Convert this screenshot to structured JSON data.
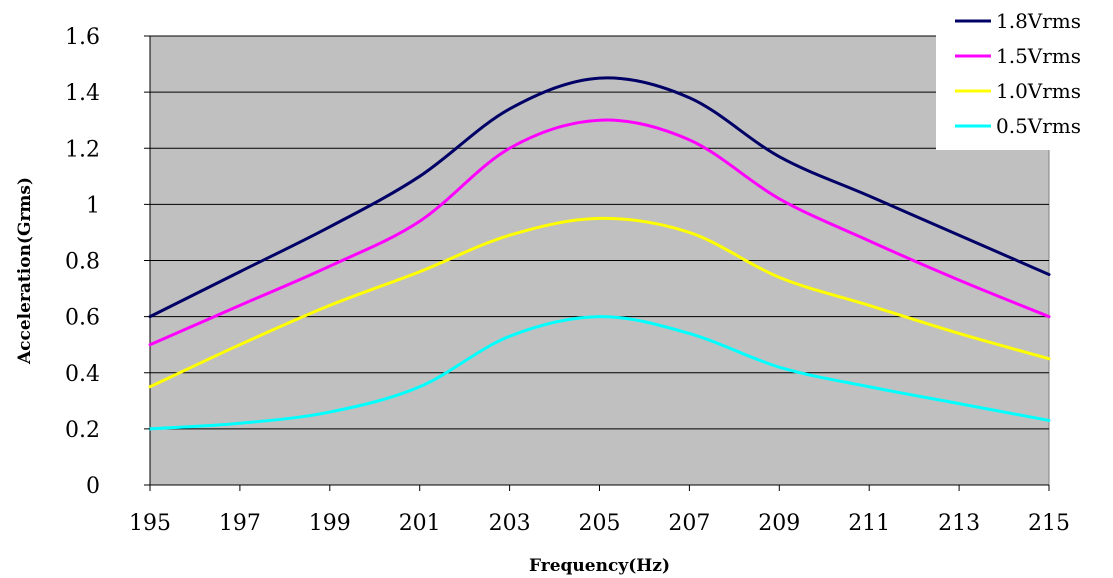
{
  "chart_data": {
    "type": "line",
    "title": "",
    "xlabel": "Frequency(Hz)",
    "ylabel": "Acceleration(Grms)",
    "xlim": [
      195,
      215
    ],
    "ylim": [
      0,
      1.6
    ],
    "x_ticks": [
      "195",
      "197",
      "199",
      "201",
      "203",
      "205",
      "207",
      "209",
      "211",
      "213",
      "215"
    ],
    "y_ticks": [
      "0",
      "0.2",
      "0.4",
      "0.6",
      "0.8",
      "1",
      "1.2",
      "1.4",
      "1.6"
    ],
    "x": [
      195,
      197,
      199,
      201,
      203,
      205,
      207,
      209,
      211,
      213,
      215
    ],
    "grid": "horizontal",
    "plot_background": "#c0c0c0",
    "legend_position": "top-right",
    "series": [
      {
        "name": "1.8Vrms",
        "color": "#000066",
        "values": [
          0.6,
          0.76,
          0.92,
          1.1,
          1.34,
          1.45,
          1.38,
          1.17,
          1.03,
          0.89,
          0.75
        ]
      },
      {
        "name": "1.5Vrms",
        "color": "#ff00ff",
        "values": [
          0.5,
          0.64,
          0.78,
          0.94,
          1.2,
          1.3,
          1.23,
          1.02,
          0.87,
          0.73,
          0.6
        ]
      },
      {
        "name": "1.0Vrms",
        "color": "#ffff00",
        "values": [
          0.35,
          0.5,
          0.64,
          0.76,
          0.89,
          0.95,
          0.9,
          0.74,
          0.64,
          0.54,
          0.45
        ]
      },
      {
        "name": "0.5Vrms",
        "color": "#00ffff",
        "values": [
          0.2,
          0.22,
          0.26,
          0.35,
          0.53,
          0.6,
          0.54,
          0.42,
          0.35,
          0.29,
          0.23
        ]
      }
    ]
  }
}
